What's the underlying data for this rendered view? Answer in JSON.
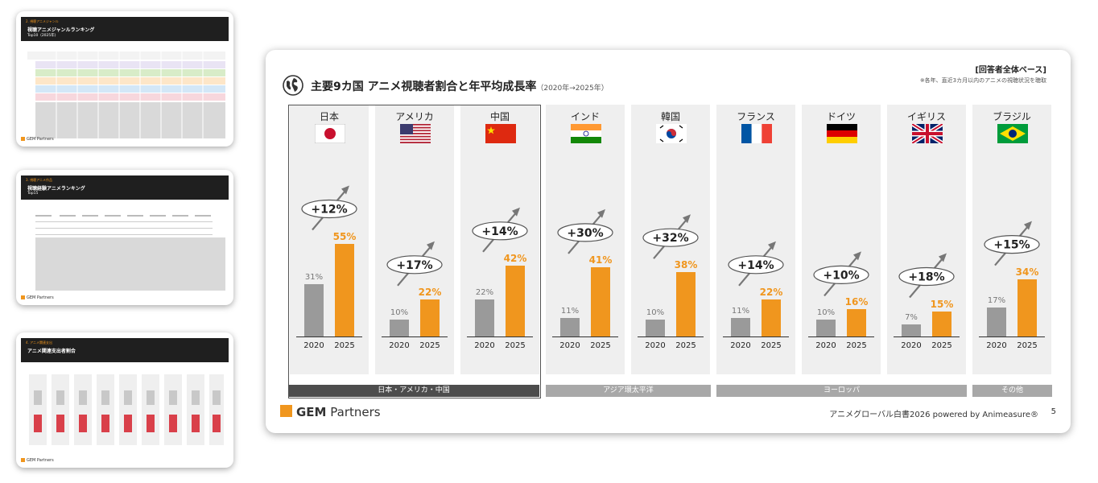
{
  "thumbnails": [
    {
      "section": "2. 視聴アニメジャンル",
      "title": "視聴アニメジャンルランキング",
      "subtitle": "Top10（2025年)",
      "bg": "#d9d2e9"
    },
    {
      "section": "3. 視聴アニメ作品",
      "title": "視聴経験アニメランキング",
      "subtitle": "Top15",
      "bg": "#ffffff"
    },
    {
      "section": "4. アニメ関連支出",
      "title": "アニメ関連支出者割合",
      "subtitle": "",
      "bg": "#ffffff"
    }
  ],
  "slide": {
    "title": "主要9カ国 アニメ視聴者割合と年平均成長率",
    "title_period": "（2020年→2025年）",
    "base_label": "[回答者全体ベース]",
    "base_note": "※各年、直近3カ月以内のアニメの視聴状況を聴取",
    "logo_brand": "GEM",
    "logo_rest": " Partners",
    "footer": "アニメグローバル白書2026 powered by Animeasure®",
    "page_number": "5"
  },
  "regions": [
    {
      "label": "日本・アメリカ・中国",
      "dark": true
    },
    {
      "label": "アジア環太平洋",
      "dark": false
    },
    {
      "label": "ヨーロッパ",
      "dark": false
    },
    {
      "label": "その他",
      "dark": false
    }
  ],
  "colors": {
    "bar_2020": "#9a9a9a",
    "bar_2025": "#f0961e",
    "column_bg": "#efefef",
    "accent": "#f0961e"
  },
  "chart_data": {
    "type": "bar",
    "title": "主要9カ国 アニメ視聴者割合と年平均成長率",
    "x_labels": [
      "2020",
      "2025"
    ],
    "ylim": [
      0,
      60
    ],
    "countries": [
      {
        "name": "日本",
        "flag": "japan-flag-icon",
        "v2020": 31,
        "v2025": 55,
        "l2020": "31%",
        "l2025": "55%",
        "growth": "+12%"
      },
      {
        "name": "アメリカ",
        "flag": "usa-flag-icon",
        "v2020": 10,
        "v2025": 22,
        "l2020": "10%",
        "l2025": "22%",
        "growth": "+17%"
      },
      {
        "name": "中国",
        "flag": "china-flag-icon",
        "v2020": 22,
        "v2025": 42,
        "l2020": "22%",
        "l2025": "42%",
        "growth": "+14%"
      },
      {
        "name": "インド",
        "flag": "india-flag-icon",
        "v2020": 11,
        "v2025": 41,
        "l2020": "11%",
        "l2025": "41%",
        "growth": "+30%"
      },
      {
        "name": "韓国",
        "flag": "korea-flag-icon",
        "v2020": 10,
        "v2025": 38,
        "l2020": "10%",
        "l2025": "38%",
        "growth": "+32%"
      },
      {
        "name": "フランス",
        "flag": "france-flag-icon",
        "v2020": 11,
        "v2025": 22,
        "l2020": "11%",
        "l2025": "22%",
        "growth": "+14%"
      },
      {
        "name": "ドイツ",
        "flag": "germany-flag-icon",
        "v2020": 10,
        "v2025": 16,
        "l2020": "10%",
        "l2025": "16%",
        "growth": "+10%"
      },
      {
        "name": "イギリス",
        "flag": "uk-flag-icon",
        "v2020": 7,
        "v2025": 15,
        "l2020": "7%",
        "l2025": "15%",
        "growth": "+18%"
      },
      {
        "name": "ブラジル",
        "flag": "brazil-flag-icon",
        "v2020": 17,
        "v2025": 34,
        "l2020": "17%",
        "l2025": "34%",
        "growth": "+15%"
      }
    ]
  }
}
